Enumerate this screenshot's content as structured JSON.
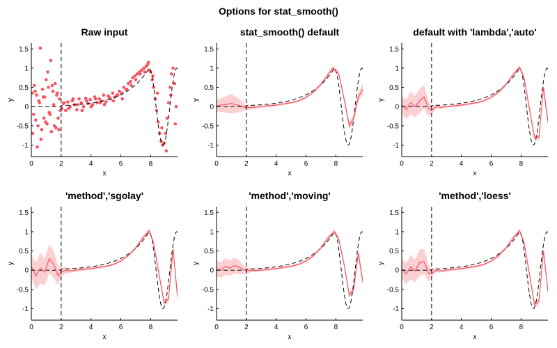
{
  "figure": {
    "suptitle": "Options for stat_smooth()"
  },
  "style": {
    "data_color": "#f8535f",
    "band_color": "#fbd0d3",
    "truth_color": "#000000",
    "axis_color": "#000000"
  },
  "chart_data": [
    {
      "type": "scatter",
      "title": "Raw input",
      "xlabel": "x",
      "ylabel": "y",
      "xlim": [
        0,
        9.8
      ],
      "ylim": [
        -1.3,
        1.65
      ],
      "xticks": [
        0,
        2,
        4,
        6,
        8
      ],
      "yticks": [
        -1,
        -0.5,
        0,
        0.5,
        1,
        1.5
      ],
      "vline_x": 2,
      "true_curve": "dashed black",
      "series": [
        {
          "role": "points",
          "x": [
            0.05,
            0.15,
            0.2,
            0.3,
            0.35,
            0.45,
            0.5,
            0.6,
            0.7,
            0.75,
            0.85,
            0.9,
            1.0,
            1.05,
            1.15,
            1.2,
            1.3,
            1.35,
            1.45,
            1.5,
            1.6,
            1.65,
            1.75,
            1.8,
            1.9,
            1.95,
            0.1,
            0.25,
            0.4,
            0.55,
            0.65,
            0.8,
            0.95,
            1.1,
            1.25,
            1.4,
            1.55,
            1.7,
            1.85,
            2.05,
            2.15,
            2.3,
            2.45,
            2.6,
            2.75,
            2.9,
            3.05,
            3.2,
            3.35,
            3.5,
            3.65,
            3.8,
            3.95,
            4.1,
            4.25,
            4.4,
            4.55,
            4.7,
            4.85,
            5.0,
            5.15,
            5.3,
            5.45,
            5.6,
            5.75,
            5.9,
            6.05,
            6.2,
            6.35,
            6.5,
            6.65,
            6.8,
            6.95,
            7.1,
            7.25,
            7.4,
            7.55,
            7.7,
            7.8,
            7.9,
            8.0,
            8.1,
            8.2,
            8.3,
            8.4,
            8.5,
            8.6,
            8.7,
            8.8,
            8.9,
            9.0,
            9.1,
            9.2,
            9.3,
            9.4,
            9.5,
            9.6,
            9.7,
            2.2,
            2.5,
            2.8,
            3.1,
            3.4,
            3.7,
            4.0,
            4.3,
            4.6,
            4.9,
            5.2,
            5.5,
            5.8,
            6.1,
            6.4,
            6.7,
            7.0,
            7.3,
            7.6,
            7.85,
            8.15,
            8.45,
            8.75,
            9.05,
            9.35,
            9.65
          ],
          "y": [
            0.35,
            -0.2,
            0.55,
            -0.35,
            0.3,
            -0.5,
            0.15,
            1.52,
            -0.6,
            0.45,
            -0.3,
            0.25,
            0.7,
            -0.45,
            0.5,
            -0.15,
            1.2,
            -0.65,
            0.4,
            0.05,
            0.6,
            -0.55,
            0.35,
            -0.3,
            0.2,
            -0.1,
            -0.7,
            0.4,
            -1.05,
            0.1,
            -0.85,
            0.25,
            -0.4,
            0.9,
            -0.2,
            0.55,
            -0.5,
            0.3,
            -0.6,
            -0.05,
            0.08,
            -0.1,
            0.12,
            0.0,
            0.15,
            0.05,
            -0.08,
            0.2,
            0.1,
            0.0,
            0.22,
            0.08,
            0.18,
            0.05,
            0.25,
            0.1,
            0.2,
            0.15,
            0.3,
            0.12,
            0.28,
            0.2,
            0.35,
            0.25,
            0.3,
            0.4,
            0.35,
            0.5,
            0.45,
            0.6,
            0.65,
            0.75,
            0.8,
            0.85,
            0.9,
            0.95,
            1.0,
            1.05,
            1.1,
            0.95,
            0.9,
            0.7,
            0.5,
            0.2,
            -0.1,
            -0.4,
            -0.7,
            -0.9,
            -1.0,
            -0.95,
            -0.7,
            -0.3,
            0.1,
            0.5,
            0.85,
            1.0,
            0.6,
            0.0,
            0.1,
            -0.05,
            0.2,
            0.05,
            -0.1,
            0.15,
            0.0,
            0.2,
            0.1,
            0.05,
            0.25,
            0.15,
            0.3,
            0.2,
            0.45,
            0.55,
            0.7,
            0.85,
            0.9,
            1.15,
            0.8,
            0.35,
            -0.55,
            -1.15,
            0.3,
            -0.45
          ]
        }
      ]
    },
    {
      "type": "line",
      "title": "stat_smooth() default",
      "xlabel": "x",
      "ylabel": "y",
      "xlim": [
        0,
        9.8
      ],
      "ylim": [
        -1.3,
        1.65
      ],
      "xticks": [
        0,
        2,
        4,
        6,
        8
      ],
      "yticks": [
        -1,
        -0.5,
        0,
        0.5,
        1,
        1.5
      ],
      "vline_x": 2,
      "true_curve": "dashed black",
      "smooth": {
        "x": [
          0,
          0.5,
          1,
          1.5,
          2,
          2.5,
          3,
          3.5,
          4,
          4.5,
          5,
          5.5,
          6,
          6.5,
          7,
          7.5,
          7.8,
          8.2,
          8.6,
          8.9,
          9.2,
          9.5,
          9.8
        ],
        "y": [
          0.02,
          0.05,
          0.08,
          0.03,
          -0.03,
          -0.02,
          0.0,
          0.02,
          0.04,
          0.07,
          0.1,
          0.15,
          0.24,
          0.38,
          0.58,
          0.85,
          1.0,
          0.85,
          0.1,
          -0.5,
          -0.3,
          0.25,
          0.45
        ],
        "band": [
          0.15,
          0.2,
          0.25,
          0.18,
          0.06,
          0.04,
          0.03,
          0.03,
          0.03,
          0.03,
          0.03,
          0.03,
          0.03,
          0.04,
          0.04,
          0.05,
          0.06,
          0.06,
          0.08,
          0.1,
          0.1,
          0.12,
          0.15
        ]
      }
    },
    {
      "type": "line",
      "title": "default with 'lambda','auto'",
      "xlabel": "x",
      "ylabel": "y",
      "xlim": [
        0,
        9.8
      ],
      "ylim": [
        -1.3,
        1.65
      ],
      "xticks": [
        0,
        2,
        4,
        6,
        8
      ],
      "yticks": [
        -1,
        -0.5,
        0,
        0.5,
        1,
        1.5
      ],
      "vline_x": 2,
      "true_curve": "dashed black",
      "smooth": {
        "x": [
          0,
          0.3,
          0.6,
          0.9,
          1.2,
          1.5,
          1.8,
          2.0,
          2.3,
          2.6,
          3,
          3.5,
          4,
          4.5,
          5,
          5.5,
          6,
          6.5,
          7,
          7.5,
          7.9,
          8.2,
          8.6,
          8.9,
          9.2,
          9.5,
          9.8
        ],
        "y": [
          0.05,
          -0.08,
          0.1,
          0.0,
          0.15,
          0.25,
          -0.05,
          -0.1,
          0.0,
          -0.02,
          0.0,
          0.02,
          0.04,
          0.07,
          0.1,
          0.15,
          0.24,
          0.38,
          0.58,
          0.85,
          1.02,
          0.75,
          -0.15,
          -0.8,
          -0.8,
          0.5,
          -0.4
        ],
        "band": [
          0.22,
          0.25,
          0.3,
          0.28,
          0.32,
          0.3,
          0.2,
          0.1,
          0.06,
          0.04,
          0.03,
          0.03,
          0.03,
          0.03,
          0.03,
          0.03,
          0.03,
          0.04,
          0.04,
          0.05,
          0.06,
          0.06,
          0.07,
          0.08,
          0.08,
          0.1,
          0.12
        ]
      }
    },
    {
      "type": "line",
      "title": "'method','sgolay'",
      "xlabel": "x",
      "ylabel": "y",
      "xlim": [
        0,
        9.8
      ],
      "ylim": [
        -1.3,
        1.65
      ],
      "xticks": [
        0,
        2,
        4,
        6,
        8
      ],
      "yticks": [
        -1,
        -0.5,
        0,
        0.5,
        1,
        1.5
      ],
      "vline_x": 2,
      "true_curve": "dashed black",
      "smooth": {
        "x": [
          0,
          0.3,
          0.6,
          0.9,
          1.2,
          1.5,
          1.8,
          2.0,
          2.3,
          2.6,
          3,
          3.5,
          4,
          4.5,
          5,
          5.5,
          6,
          6.5,
          7,
          7.5,
          7.9,
          8.2,
          8.6,
          8.9,
          9.2,
          9.5,
          9.8
        ],
        "y": [
          0.1,
          -0.15,
          0.05,
          -0.05,
          0.3,
          0.15,
          -0.15,
          -0.05,
          0.0,
          -0.02,
          0.0,
          0.02,
          0.04,
          0.07,
          0.1,
          0.15,
          0.24,
          0.38,
          0.58,
          0.85,
          1.02,
          0.7,
          -0.2,
          -0.85,
          -0.75,
          0.55,
          -0.7
        ],
        "band": [
          0.3,
          0.35,
          0.4,
          0.35,
          0.38,
          0.35,
          0.25,
          0.12,
          0.08,
          0.05,
          0.04,
          0.03,
          0.03,
          0.03,
          0.03,
          0.03,
          0.03,
          0.04,
          0.04,
          0.05,
          0.06,
          0.06,
          0.07,
          0.08,
          0.08,
          0.1,
          0.14
        ]
      }
    },
    {
      "type": "line",
      "title": "'method','moving'",
      "xlabel": "x",
      "ylabel": "y",
      "xlim": [
        0,
        9.8
      ],
      "ylim": [
        -1.3,
        1.65
      ],
      "xticks": [
        0,
        2,
        4,
        6,
        8
      ],
      "yticks": [
        -1,
        -0.5,
        0,
        0.5,
        1,
        1.5
      ],
      "vline_x": 2,
      "true_curve": "dashed black",
      "smooth": {
        "x": [
          0,
          0.3,
          0.6,
          0.9,
          1.2,
          1.5,
          1.8,
          2.0,
          2.3,
          2.6,
          3,
          3.5,
          4,
          4.5,
          5,
          5.5,
          6,
          6.5,
          7,
          7.5,
          7.9,
          8.2,
          8.6,
          8.9,
          9.2,
          9.5,
          9.8
        ],
        "y": [
          0.05,
          0.0,
          0.1,
          0.05,
          0.12,
          0.08,
          0.02,
          -0.02,
          0.0,
          -0.01,
          0.0,
          0.02,
          0.04,
          0.07,
          0.1,
          0.15,
          0.24,
          0.38,
          0.58,
          0.85,
          1.0,
          0.8,
          0.05,
          -0.65,
          -0.5,
          0.45,
          -0.3
        ],
        "band": [
          0.2,
          0.2,
          0.22,
          0.2,
          0.2,
          0.18,
          0.12,
          0.08,
          0.05,
          0.04,
          0.03,
          0.03,
          0.03,
          0.03,
          0.03,
          0.03,
          0.03,
          0.04,
          0.04,
          0.05,
          0.06,
          0.06,
          0.07,
          0.08,
          0.08,
          0.1,
          0.12
        ]
      }
    },
    {
      "type": "line",
      "title": "'method','loess'",
      "xlabel": "x",
      "ylabel": "y",
      "xlim": [
        0,
        9.8
      ],
      "ylim": [
        -1.3,
        1.65
      ],
      "xticks": [
        0,
        2,
        4,
        6,
        8
      ],
      "yticks": [
        -1,
        -0.5,
        0,
        0.5,
        1,
        1.5
      ],
      "vline_x": 2,
      "true_curve": "dashed black",
      "smooth": {
        "x": [
          0,
          0.3,
          0.6,
          0.9,
          1.2,
          1.5,
          1.8,
          2.0,
          2.3,
          2.6,
          3,
          3.5,
          4,
          4.5,
          5,
          5.5,
          6,
          6.5,
          7,
          7.5,
          7.9,
          8.2,
          8.6,
          8.9,
          9.2,
          9.5,
          9.8
        ],
        "y": [
          0.05,
          -0.1,
          0.08,
          -0.02,
          0.2,
          0.22,
          -0.08,
          -0.08,
          0.0,
          -0.02,
          0.0,
          0.02,
          0.04,
          0.07,
          0.1,
          0.15,
          0.24,
          0.38,
          0.58,
          0.85,
          1.02,
          0.72,
          -0.2,
          -0.9,
          -0.8,
          0.5,
          -0.55
        ],
        "band": [
          0.25,
          0.28,
          0.32,
          0.3,
          0.35,
          0.32,
          0.22,
          0.1,
          0.06,
          0.04,
          0.03,
          0.03,
          0.03,
          0.03,
          0.03,
          0.03,
          0.03,
          0.04,
          0.04,
          0.05,
          0.06,
          0.06,
          0.07,
          0.08,
          0.08,
          0.1,
          0.13
        ]
      }
    }
  ]
}
